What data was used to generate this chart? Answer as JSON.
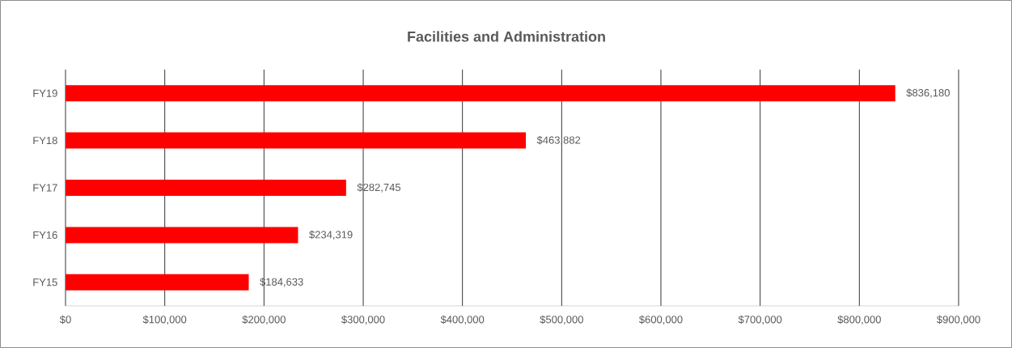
{
  "chart_data": {
    "type": "bar",
    "orientation": "horizontal",
    "title": "Facilities and Administration",
    "categories": [
      "FY19",
      "FY18",
      "FY17",
      "FY16",
      "FY15"
    ],
    "values": [
      836180,
      463882,
      282745,
      234319,
      184633
    ],
    "value_labels": [
      "$836,180",
      "$463,882",
      "$282,745",
      "$234,319",
      "$184,633"
    ],
    "color": "#ff0000",
    "xlim": [
      0,
      900000
    ],
    "xticks": [
      {
        "value": 0,
        "label": "$0"
      },
      {
        "value": 100000,
        "label": "$100,000"
      },
      {
        "value": 200000,
        "label": "$200,000"
      },
      {
        "value": 300000,
        "label": "$300,000"
      },
      {
        "value": 400000,
        "label": "$400,000"
      },
      {
        "value": 500000,
        "label": "$500,000"
      },
      {
        "value": 600000,
        "label": "$600,000"
      },
      {
        "value": 700000,
        "label": "$700,000"
      },
      {
        "value": 800000,
        "label": "$800,000"
      },
      {
        "value": 900000,
        "label": "$900,000"
      }
    ],
    "grid": "x"
  }
}
